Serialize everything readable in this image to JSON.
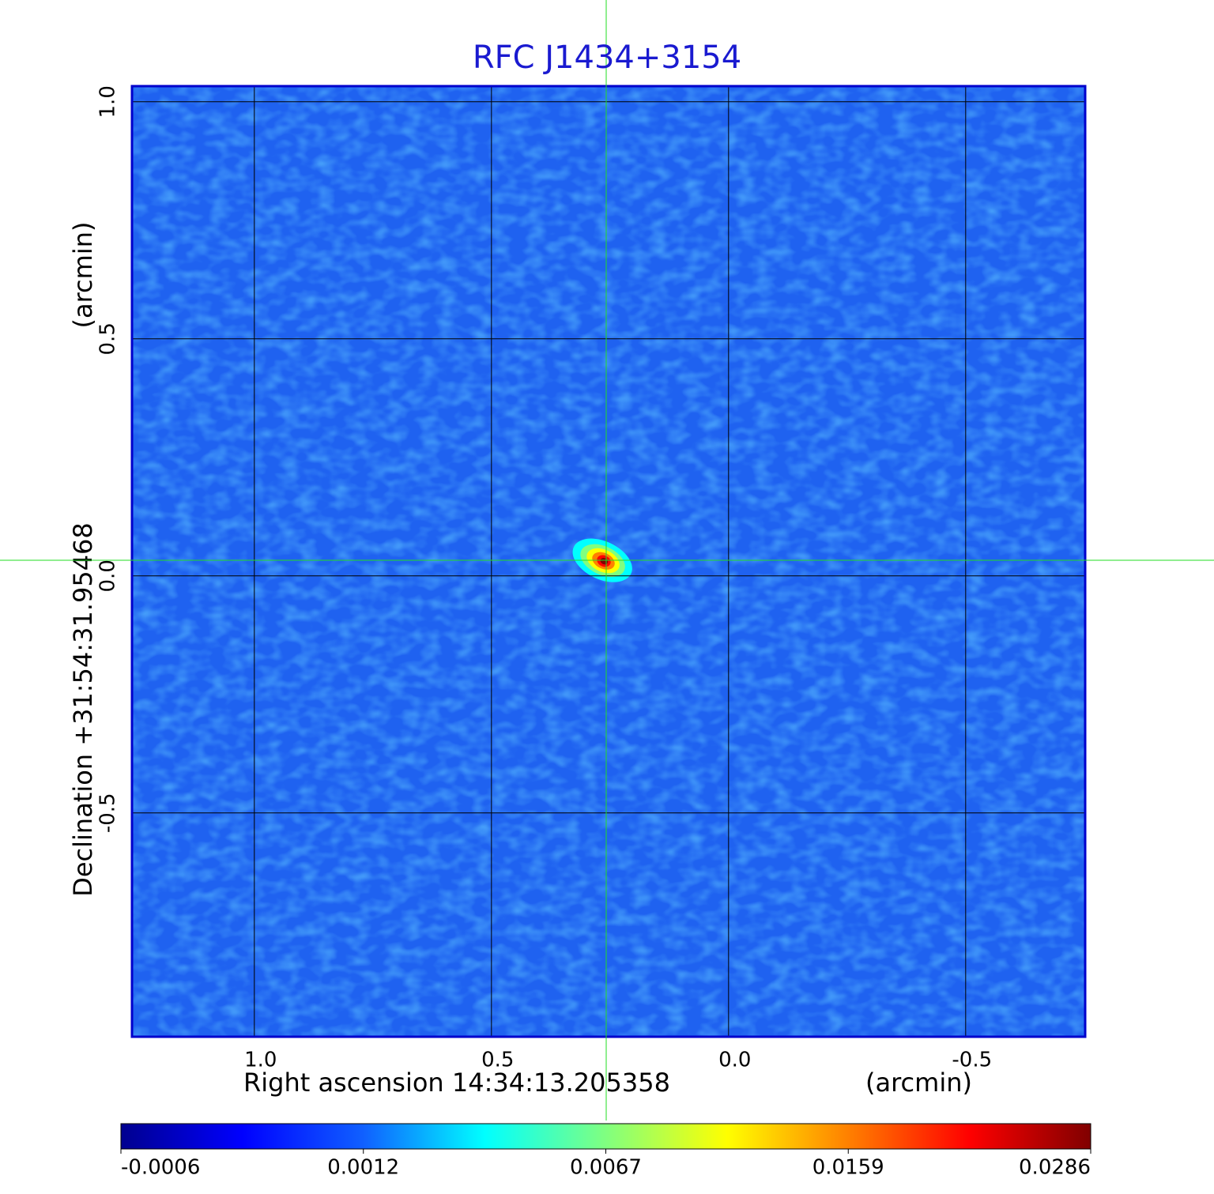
{
  "chart_data": {
    "type": "image",
    "title": "RFC J1434+3154",
    "xlabel": "Right ascension  14:34:13.205358",
    "xunit": "(arcmin)",
    "ylabel": "Declination  +31:54:31.95468",
    "yunit": "(arcmin)",
    "xlim": [
      1.258,
      -0.752
    ],
    "ylim": [
      -0.972,
      1.033
    ],
    "xticks": [
      {
        "value": 1,
        "label": "1.0"
      },
      {
        "value": 0.5,
        "label": "0.5"
      },
      {
        "value": 0,
        "label": "0.0"
      },
      -0.5
    ],
    "yticks": [
      -0.5,
      {
        "value": 0,
        "label": "0.0"
      },
      {
        "value": 0.5,
        "label": "0.5"
      },
      {
        "value": 1,
        "label": "1.0"
      }
    ],
    "grid": true,
    "frame_color": "#0000cc",
    "background_color": "#1f62f0",
    "crosshair": {
      "x": 0.258,
      "y": 0.033,
      "color": "#22dd22"
    },
    "source": {
      "x": 0.26,
      "y": 0.03,
      "peak": 0.0286
    },
    "colorbar": {
      "ticks": [
        -0.0006,
        0.0012,
        0.0067,
        0.0159,
        0.0286
      ],
      "colormap": [
        "#00008f",
        "#0000ff",
        "#1060ff",
        "#00ffff",
        "#80ff80",
        "#ffff00",
        "#ff8000",
        "#ff0000",
        "#800000"
      ]
    }
  }
}
